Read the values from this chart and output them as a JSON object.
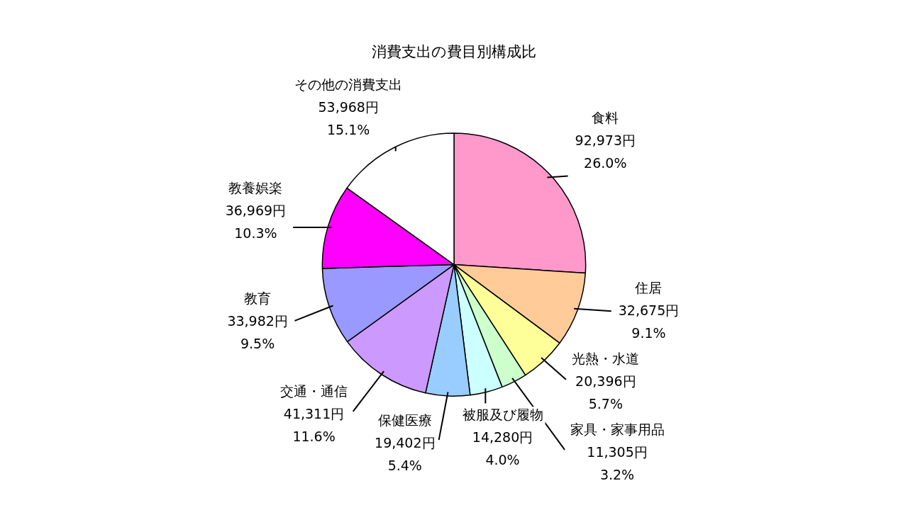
{
  "chart_data": {
    "type": "pie",
    "title": "消費支出の費目別構成比",
    "categories": [
      "食料",
      "住居",
      "光熱・水道",
      "家具・家事用品",
      "被服及び履物",
      "保健医療",
      "交通・通信",
      "教育",
      "教養娯楽",
      "その他の消費支出"
    ],
    "values": [
      92973,
      32675,
      20396,
      11305,
      14280,
      19402,
      41311,
      33982,
      36969,
      53968
    ],
    "colors": [
      "#ff99cc",
      "#ffcc99",
      "#ffff99",
      "#ccffcc",
      "#ccffff",
      "#99ccff",
      "#cc99ff",
      "#9999ff",
      "#ff00ff",
      "#ffffff"
    ],
    "value_labels": [
      "92,973円\n26.0%",
      "32,675円\n9.1%",
      "20,396円\n5.7%",
      "11,305円\n3.2%",
      "14,280円\n4.0%",
      "19,402円\n5.4%",
      "41,311円\n11.6%",
      "33,982円\n9.5%",
      "36,969円\n10.3%",
      "53,968円\n15.1%"
    ],
    "legend": false
  }
}
